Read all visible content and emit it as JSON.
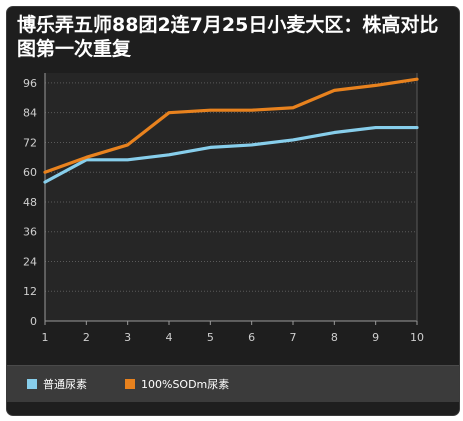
{
  "chart_data": {
    "type": "line",
    "title": "博乐弄五师88团2连7月25日小麦大区：株高对比图第一次重复",
    "xlabel": "",
    "ylabel": "",
    "x": [
      1,
      2,
      3,
      4,
      5,
      6,
      7,
      8,
      9,
      10
    ],
    "y_ticks": [
      0,
      12,
      24,
      36,
      48,
      60,
      72,
      84,
      96
    ],
    "ylim": [
      0,
      100
    ],
    "xlim": [
      1,
      10
    ],
    "grid": true,
    "legend_position": "bottom",
    "series": [
      {
        "name": "普通尿素",
        "color": "#87ceeb",
        "values": [
          56,
          65,
          65,
          67,
          70,
          71,
          73,
          76,
          78,
          78
        ]
      },
      {
        "name": "100%SODm尿素",
        "color": "#e8821e",
        "values": [
          60,
          66,
          71,
          84,
          85,
          85,
          86,
          93,
          95,
          97.5
        ]
      }
    ]
  }
}
